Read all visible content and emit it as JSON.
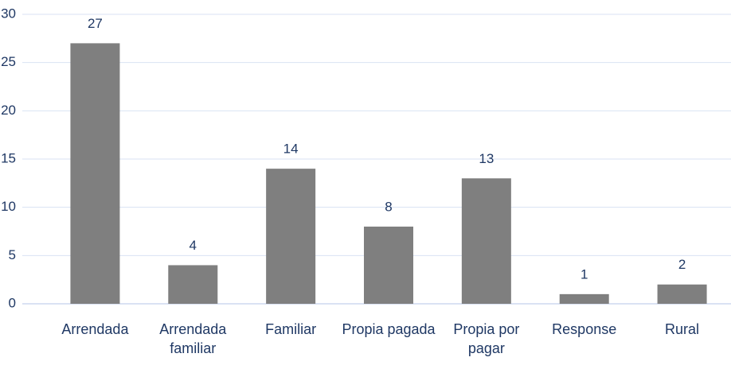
{
  "chart_data": {
    "type": "bar",
    "categories": [
      "Arrendada",
      "Arrendada familiar",
      "Familiar",
      "Propia pagada",
      "Propia por pagar",
      "Response",
      "Rural"
    ],
    "values": [
      27,
      4,
      14,
      8,
      13,
      1,
      2
    ],
    "color": "#7f7f7f",
    "ylim": [
      0,
      30
    ],
    "yticks": [
      0,
      5,
      10,
      15,
      20,
      25,
      30
    ],
    "grid": true
  }
}
